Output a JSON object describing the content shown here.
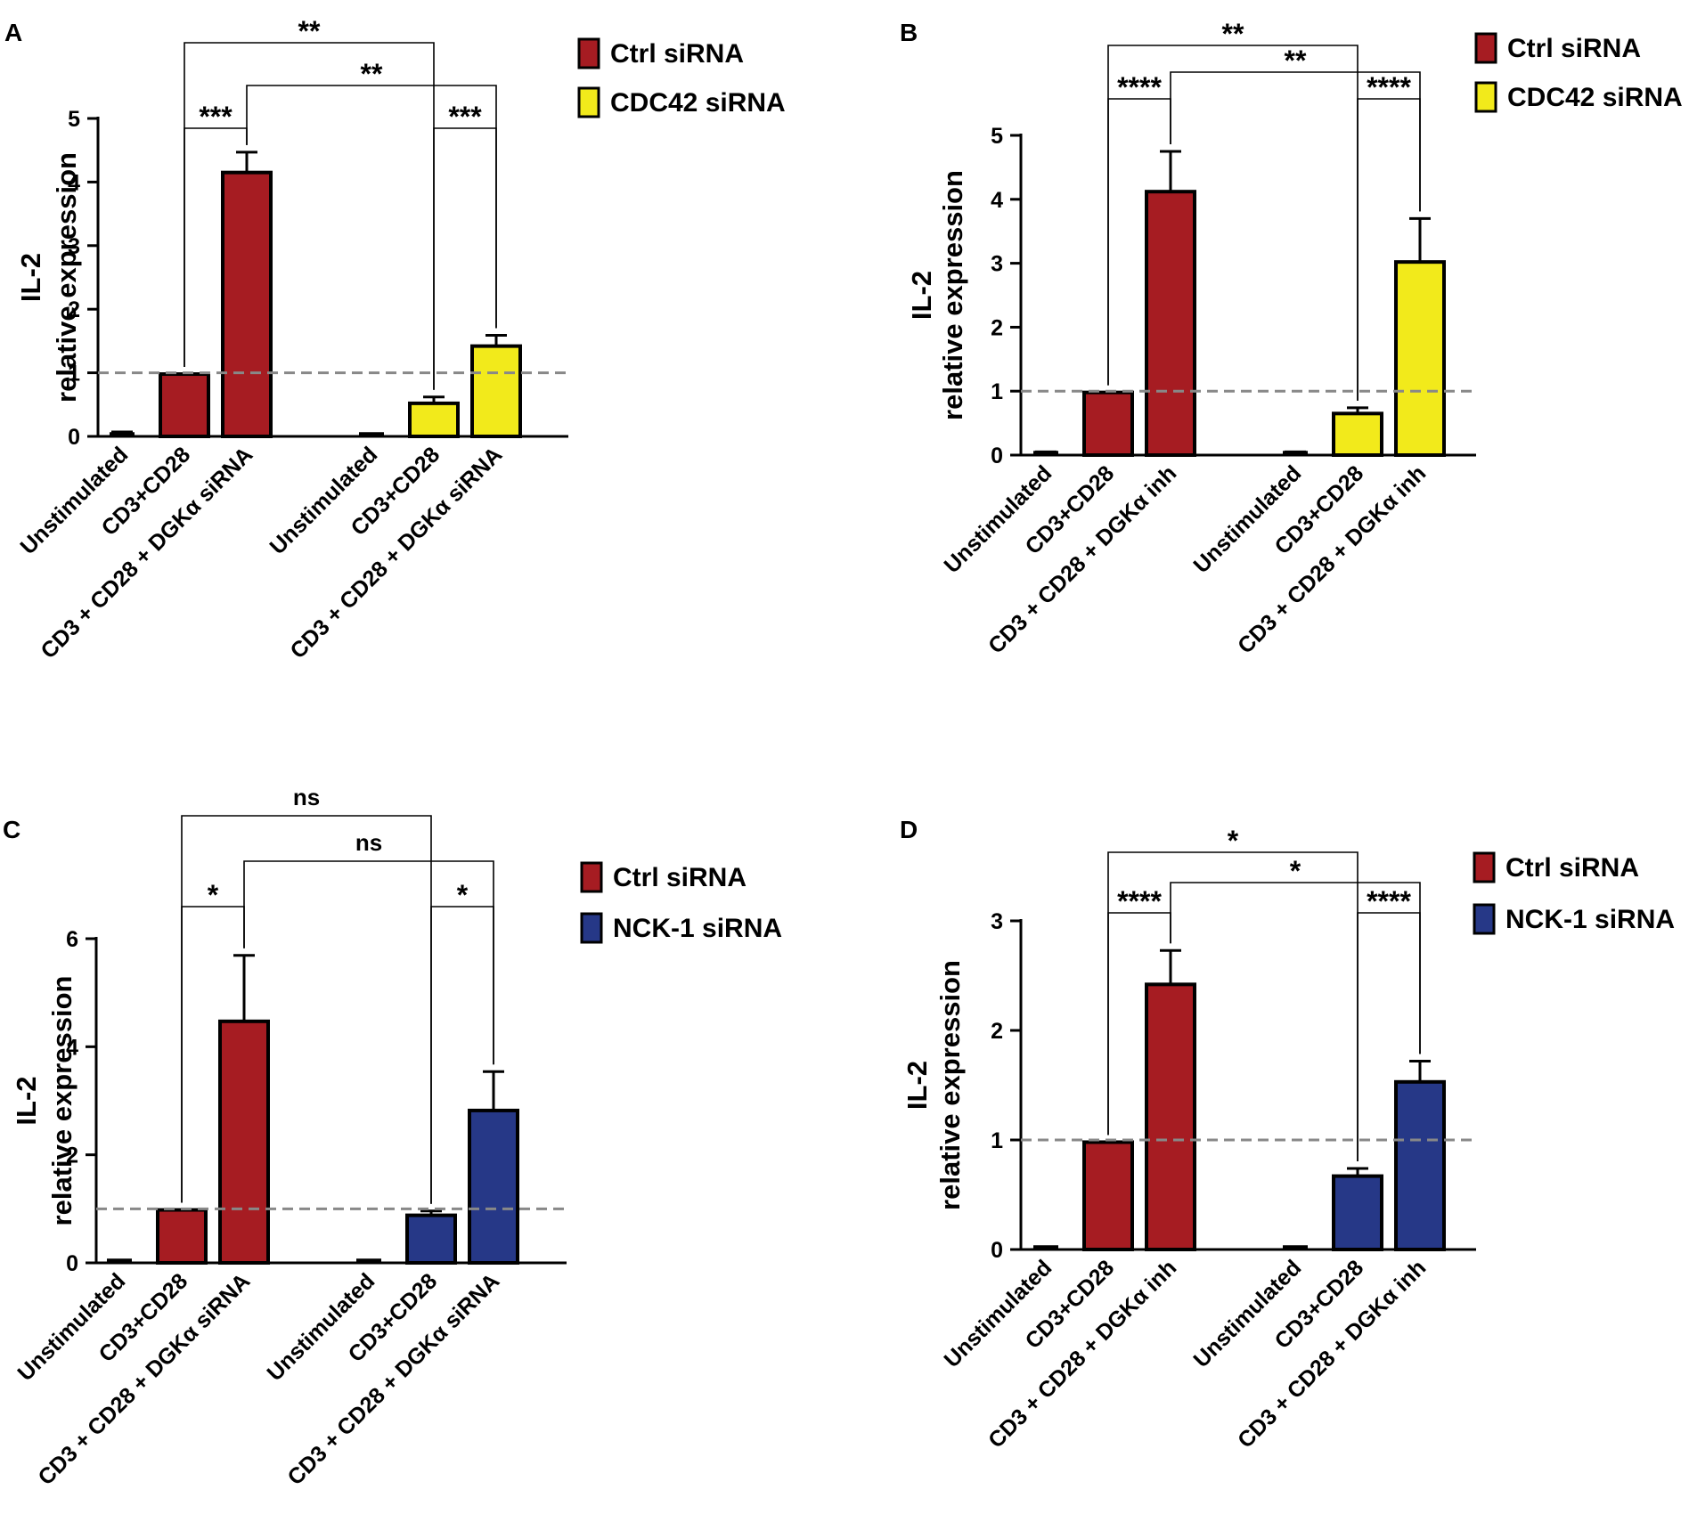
{
  "colors": {
    "ctrl": "#A61C22",
    "cdc42": "#F2EA1B",
    "nck1": "#263887",
    "axis": "#000000",
    "ref_line": "#888888"
  },
  "chart_data": [
    {
      "panel": "A",
      "type": "bar",
      "ylabel": [
        "IL-2",
        "relative expression"
      ],
      "ylim": [
        0,
        5
      ],
      "yticks": [
        0,
        1,
        2,
        3,
        4,
        5
      ],
      "reference_line": 1,
      "legend": [
        {
          "label": "Ctrl siRNA",
          "color_key": "ctrl"
        },
        {
          "label": "CDC42 siRNA",
          "color_key": "cdc42"
        }
      ],
      "groups": [
        {
          "color_key": "ctrl",
          "categories": [
            "Unstimulated",
            "CD3+CD28",
            "CD3 + CD28 + DGKα siRNA"
          ],
          "values": [
            0.02,
            0.98,
            4.15
          ],
          "errors": [
            0.05,
            0.0,
            0.32
          ]
        },
        {
          "color_key": "cdc42",
          "categories": [
            "Unstimulated",
            "CD3+CD28",
            "CD3 + CD28 + DGKα siRNA"
          ],
          "values": [
            0.0,
            0.52,
            1.42
          ],
          "errors": [
            0.0,
            0.1,
            0.17
          ]
        }
      ],
      "comparisons": [
        {
          "from": [
            0,
            1
          ],
          "to": [
            1,
            1
          ],
          "label": "**",
          "level": 4
        },
        {
          "from": [
            0,
            2
          ],
          "to": [
            1,
            2
          ],
          "label": "**",
          "level": 3
        },
        {
          "from": [
            0,
            1
          ],
          "to": [
            0,
            2
          ],
          "label": "***",
          "level": 2
        },
        {
          "from": [
            1,
            1
          ],
          "to": [
            1,
            2
          ],
          "label": "***",
          "level": 2
        }
      ]
    },
    {
      "panel": "B",
      "type": "bar",
      "ylabel": [
        "IL-2",
        "relative expression"
      ],
      "ylim": [
        0,
        5
      ],
      "yticks": [
        0,
        1,
        2,
        3,
        4,
        5
      ],
      "reference_line": 1,
      "legend": [
        {
          "label": "Ctrl siRNA",
          "color_key": "ctrl"
        },
        {
          "label": "CDC42 siRNA",
          "color_key": "cdc42"
        }
      ],
      "groups": [
        {
          "color_key": "ctrl",
          "categories": [
            "Unstimulated",
            "CD3+CD28",
            "CD3 + CD28 + DGKα inh"
          ],
          "values": [
            0.02,
            0.98,
            4.12
          ],
          "errors": [
            0.03,
            0.0,
            0.63
          ]
        },
        {
          "color_key": "cdc42",
          "categories": [
            "Unstimulated",
            "CD3+CD28",
            "CD3 + CD28 + DGKα inh"
          ],
          "values": [
            0.02,
            0.65,
            3.02
          ],
          "errors": [
            0.03,
            0.09,
            0.68
          ]
        }
      ],
      "comparisons": [
        {
          "from": [
            0,
            1
          ],
          "to": [
            1,
            1
          ],
          "label": "**",
          "level": 4
        },
        {
          "from": [
            0,
            2
          ],
          "to": [
            1,
            2
          ],
          "label": "**",
          "level": 3
        },
        {
          "from": [
            0,
            1
          ],
          "to": [
            0,
            2
          ],
          "label": "****",
          "level": 2
        },
        {
          "from": [
            1,
            1
          ],
          "to": [
            1,
            2
          ],
          "label": "****",
          "level": 2
        }
      ]
    },
    {
      "panel": "C",
      "type": "bar",
      "ylabel": [
        "IL-2",
        "relative expression"
      ],
      "ylim": [
        0,
        6
      ],
      "yticks": [
        0,
        2,
        4,
        6
      ],
      "reference_line": 1,
      "legend": [
        {
          "label": "Ctrl siRNA",
          "color_key": "ctrl"
        },
        {
          "label": "NCK-1 siRNA",
          "color_key": "nck1"
        }
      ],
      "groups": [
        {
          "color_key": "ctrl",
          "categories": [
            "Unstimulated",
            "CD3+CD28",
            "CD3 + CD28 + DGKα siRNA"
          ],
          "values": [
            0.02,
            0.98,
            4.47
          ],
          "errors": [
            0.03,
            0.0,
            1.22
          ]
        },
        {
          "color_key": "nck1",
          "categories": [
            "Unstimulated",
            "CD3+CD28",
            "CD3 + CD28 + DGKα siRNA"
          ],
          "values": [
            0.0,
            0.88,
            2.82
          ],
          "errors": [
            0.0,
            0.08,
            0.72
          ]
        }
      ],
      "comparisons": [
        {
          "from": [
            0,
            1
          ],
          "to": [
            1,
            1
          ],
          "label": "ns",
          "level": 4
        },
        {
          "from": [
            0,
            2
          ],
          "to": [
            1,
            2
          ],
          "label": "ns",
          "level": 3
        },
        {
          "from": [
            0,
            1
          ],
          "to": [
            0,
            2
          ],
          "label": "*",
          "level": 2
        },
        {
          "from": [
            1,
            1
          ],
          "to": [
            1,
            2
          ],
          "label": "*",
          "level": 2
        }
      ]
    },
    {
      "panel": "D",
      "type": "bar",
      "ylabel": [
        "IL-2",
        "relative expression"
      ],
      "ylim": [
        0,
        3
      ],
      "yticks": [
        0,
        1,
        2,
        3
      ],
      "reference_line": 1,
      "legend": [
        {
          "label": "Ctrl siRNA",
          "color_key": "ctrl"
        },
        {
          "label": "NCK-1 siRNA",
          "color_key": "nck1"
        }
      ],
      "groups": [
        {
          "color_key": "ctrl",
          "categories": [
            "Unstimulated",
            "CD3+CD28",
            "CD3 + CD28 + DGKα inh"
          ],
          "values": [
            0.01,
            0.98,
            2.42
          ],
          "errors": [
            0.01,
            0.0,
            0.31
          ]
        },
        {
          "color_key": "nck1",
          "categories": [
            "Unstimulated",
            "CD3+CD28",
            "CD3 + CD28 + DGKα inh"
          ],
          "values": [
            0.01,
            0.67,
            1.53
          ],
          "errors": [
            0.01,
            0.07,
            0.19
          ]
        }
      ],
      "comparisons": [
        {
          "from": [
            0,
            1
          ],
          "to": [
            1,
            1
          ],
          "label": "*",
          "level": 4
        },
        {
          "from": [
            0,
            2
          ],
          "to": [
            1,
            2
          ],
          "label": "*",
          "level": 3
        },
        {
          "from": [
            0,
            1
          ],
          "to": [
            0,
            2
          ],
          "label": "****",
          "level": 2
        },
        {
          "from": [
            1,
            1
          ],
          "to": [
            1,
            2
          ],
          "label": "****",
          "level": 2
        }
      ]
    }
  ]
}
